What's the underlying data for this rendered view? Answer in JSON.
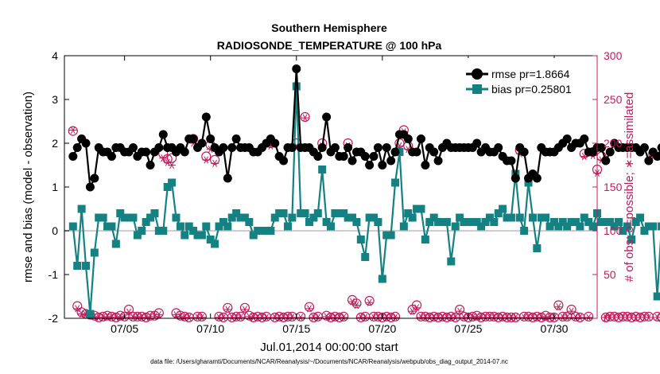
{
  "chart_data": {
    "type": "line",
    "title": "Southern Hemisphere",
    "subtitle": "RADIOSONDE_TEMPERATURE @ 100 hPa",
    "xlabel": "Jul.01,2014 00:00:00 start",
    "ylabel": "rmse and bias (model - observation)",
    "y2label": "# of obs: o=possible; ∗=assimilated",
    "footer": "data file: /Users/gharamti/Documents/NCAR/Reanalysis/~/Documents/NCAR/Reanalysis/webpub/obs_diag_output_2014-07.nc",
    "xlim": [
      0.5,
      31.5
    ],
    "ylim": [
      -2,
      4
    ],
    "y2lim": [
      0,
      300
    ],
    "x_ticks": [
      4,
      9,
      14,
      19,
      24,
      29
    ],
    "x_tick_labels": [
      "07/05",
      "07/10",
      "07/15",
      "07/20",
      "07/25",
      "07/30"
    ],
    "y_ticks": [
      -2,
      -1,
      0,
      1,
      2,
      3,
      4
    ],
    "y_tick_labels": [
      "-2",
      "-1",
      "0",
      "1",
      "2",
      "3",
      "4"
    ],
    "y2_ticks": [
      0,
      50,
      100,
      150,
      200,
      250,
      300
    ],
    "y2_tick_labels": [
      "0",
      "50",
      "100",
      "150",
      "200",
      "250",
      "300"
    ],
    "x_step_days": 0.25,
    "x_start": 1.0,
    "colors": {
      "rmse": "#000000",
      "bias": "#148282",
      "obs": "#c8195a",
      "zero_line": "#d8c8d0"
    },
    "legend": [
      {
        "name": "rmse pr=1.8664",
        "color": "#000000",
        "marker": "circle"
      },
      {
        "name": "bias pr=0.25801",
        "color": "#148282",
        "marker": "square"
      }
    ],
    "series": [
      {
        "name": "rmse",
        "axis": "left",
        "values": [
          1.7,
          1.9,
          2.1,
          2.0,
          1.0,
          1.2,
          1.9,
          1.8,
          1.8,
          1.7,
          1.9,
          1.9,
          1.8,
          1.8,
          1.9,
          1.7,
          1.8,
          1.8,
          1.5,
          1.8,
          1.9,
          2.2,
          1.9,
          1.9,
          1.8,
          1.9,
          1.8,
          2.1,
          2.1,
          1.9,
          2.0,
          2.6,
          2.1,
          1.9,
          1.8,
          1.9,
          1.2,
          1.9,
          2.1,
          1.9,
          1.9,
          1.9,
          1.8,
          1.8,
          1.9,
          2.0,
          2.1,
          2.0,
          1.7,
          1.6,
          1.9,
          1.9,
          3.7,
          1.9,
          1.9,
          1.9,
          1.8,
          1.7,
          1.9,
          2.6,
          1.8,
          1.9,
          1.7,
          1.7,
          1.9,
          1.6,
          1.8,
          1.8,
          1.7,
          1.5,
          1.7,
          1.9,
          1.5,
          1.9,
          1.6,
          1.8,
          2.2,
          2.2,
          2.1,
          1.8,
          1.8,
          2.1,
          1.5,
          1.9,
          1.8,
          1.6,
          1.9,
          2.0,
          1.9,
          1.9,
          1.9,
          1.9,
          1.9,
          1.9,
          2.0,
          1.8,
          1.9,
          1.8,
          1.8,
          1.9,
          1.7,
          1.6,
          1.6,
          1.2,
          1.9,
          1.8,
          1.2,
          1.3,
          1.2,
          1.9,
          1.8,
          1.8,
          1.8,
          1.9,
          2.0,
          2.1,
          1.9,
          2.0,
          2.0,
          2.1,
          1.8,
          1.8,
          1.9,
          1.9,
          1.6,
          1.8,
          2.0,
          1.9,
          1.9,
          1.9,
          1.9,
          1.9,
          1.8,
          1.9,
          1.6,
          1.8,
          1.7,
          1.9,
          1.9,
          2.0,
          1.9,
          2.1,
          1.7,
          2.1,
          1.9,
          1.9,
          2.7,
          1.9,
          1.9,
          2.0,
          2.0,
          1.9,
          2.0,
          1.9,
          2.0,
          2.0,
          1.9,
          1.9,
          1.9,
          2.0,
          1.9,
          1.9,
          1.8,
          2.0,
          1.8,
          1.9,
          1.9,
          2.0,
          1.9,
          2.1,
          1.3,
          1.3,
          1.3
        ]
      },
      {
        "name": "bias",
        "axis": "left",
        "values": [
          0.1,
          -0.8,
          0.5,
          -0.8,
          -1.9,
          -0.5,
          0.3,
          0.3,
          0.1,
          0.1,
          -0.3,
          0.4,
          0.3,
          0.3,
          0.3,
          -0.1,
          0.0,
          0.2,
          0.3,
          0.4,
          0.0,
          0.0,
          1.0,
          1.1,
          0.3,
          0.1,
          -0.1,
          0.1,
          0.0,
          -0.1,
          -0.1,
          0.1,
          -0.2,
          -0.3,
          0.1,
          0.2,
          0.1,
          0.3,
          0.4,
          0.3,
          0.3,
          0.2,
          -0.1,
          0.0,
          0.0,
          0.0,
          0.0,
          0.3,
          0.4,
          0.4,
          0.1,
          0.3,
          3.3,
          0.4,
          0.4,
          0.2,
          0.3,
          0.4,
          1.4,
          0.2,
          0.1,
          0.4,
          0.4,
          0.4,
          0.3,
          0.3,
          0.2,
          -0.2,
          -0.6,
          0.3,
          0.3,
          0.2,
          -1.1,
          -0.1,
          -0.1,
          1.1,
          1.8,
          0.1,
          0.4,
          0.3,
          0.5,
          0.5,
          -0.2,
          0.2,
          0.3,
          0.2,
          0.2,
          0.2,
          -0.7,
          0.1,
          0.3,
          0.2,
          0.2,
          0.2,
          0.2,
          0.1,
          0.2,
          0.3,
          0.2,
          0.4,
          0.5,
          0.3,
          0.3,
          1.3,
          0.3,
          0.0,
          1.1,
          0.3,
          -0.4,
          0.3,
          0.3,
          0.1,
          0.2,
          0.1,
          0.2,
          0.1,
          0.2,
          0.2,
          0.1,
          0.3,
          0.2,
          0.1,
          0.4,
          0.2,
          0.2,
          0.2,
          0.1,
          0.2,
          0.0,
          0.1,
          -0.2,
          0.2,
          0.3,
          0.0,
          0.1,
          0.1,
          -1.5,
          0.1,
          0.1,
          0.1,
          0.1,
          0.2,
          0.3,
          0.1,
          0.1,
          0.3,
          0.2,
          0.1,
          2.7,
          0.1,
          0.3,
          0.4,
          0.3,
          0.3,
          0.3,
          0.3,
          0.1,
          0.2,
          0.2,
          0.3,
          0.3,
          0.3,
          0.3,
          0.2,
          0.2,
          0.3,
          0.3,
          0.3,
          0.3,
          0.4,
          0.4,
          0.4,
          0.2,
          0.5,
          0.5,
          -1.7,
          0.5,
          0.7,
          0.6
        ]
      },
      {
        "name": "obs_possible",
        "axis": "right",
        "values": [
          214,
          14,
          7,
          5,
          4,
          3,
          1,
          2,
          3,
          2,
          1,
          3,
          2,
          10,
          2,
          2,
          2,
          1,
          3,
          3,
          6,
          188,
          182,
          183,
          6,
          3,
          2,
          1,
          205,
          2,
          2,
          185,
          198,
          181,
          2,
          1,
          12,
          1,
          2,
          2,
          12,
          3,
          1,
          2,
          1,
          2,
          200,
          1,
          2,
          1,
          2,
          2,
          200,
          2,
          230,
          13,
          1,
          2,
          200,
          3,
          1,
          2,
          1,
          2,
          200,
          21,
          17,
          1,
          2,
          20,
          2,
          2,
          1,
          2,
          1,
          2,
          200,
          215,
          197,
          10,
          15,
          2,
          2,
          1,
          2,
          1,
          2,
          1,
          2,
          1,
          10,
          2,
          1,
          2,
          3,
          1,
          2,
          2,
          2,
          1,
          2,
          1,
          1,
          1,
          192,
          2,
          2,
          1,
          2,
          1,
          3,
          1,
          1,
          15,
          2,
          2,
          10,
          2,
          1,
          188,
          2,
          190,
          170,
          185,
          1,
          2,
          2,
          1,
          2,
          2,
          1,
          2,
          1,
          2,
          2,
          188,
          2,
          1,
          189,
          1,
          2,
          3,
          1,
          2,
          2,
          1,
          2,
          1,
          2,
          3,
          2,
          1,
          1,
          2,
          10,
          2,
          1,
          2,
          2,
          1,
          2,
          1,
          2,
          1,
          2,
          2,
          2,
          1,
          2,
          2,
          1,
          2,
          1,
          2,
          1,
          2,
          3,
          1,
          1,
          2,
          1,
          2
        ]
      },
      {
        "name": "obs_assimilated",
        "axis": "right",
        "values": [
          215,
          11,
          5,
          4,
          3,
          2,
          1,
          1,
          2,
          1,
          1,
          2,
          1,
          7,
          1,
          2,
          1,
          1,
          2,
          2,
          4,
          183,
          178,
          175,
          4,
          2,
          1,
          1,
          200,
          1,
          1,
          181,
          193,
          177,
          1,
          1,
          10,
          1,
          1,
          1,
          10,
          2,
          1,
          1,
          1,
          1,
          197,
          1,
          1,
          1,
          1,
          1,
          197,
          1,
          229,
          11,
          1,
          1,
          197,
          2,
          1,
          1,
          1,
          1,
          197,
          19,
          15,
          1,
          1,
          18,
          1,
          1,
          1,
          1,
          1,
          1,
          197,
          213,
          193,
          8,
          12,
          1,
          1,
          1,
          1,
          1,
          1,
          1,
          1,
          1,
          8,
          1,
          1,
          1,
          2,
          1,
          1,
          1,
          1,
          1,
          1,
          1,
          1,
          1,
          188,
          1,
          1,
          1,
          1,
          1,
          2,
          1,
          1,
          13,
          1,
          1,
          8,
          1,
          1,
          185,
          1,
          186,
          166,
          181,
          1,
          1,
          1,
          1,
          1,
          1,
          1,
          1,
          1,
          1,
          1,
          185,
          1,
          1,
          185,
          1,
          1,
          2,
          1,
          1,
          1,
          1,
          1,
          1,
          1,
          2,
          1,
          1,
          1,
          1,
          8,
          1,
          1,
          1,
          1,
          1,
          1,
          1,
          1,
          1,
          1,
          1,
          1,
          1,
          1,
          1,
          1,
          1,
          1,
          1,
          1,
          1,
          2,
          1,
          1,
          1,
          1,
          1
        ]
      }
    ]
  }
}
